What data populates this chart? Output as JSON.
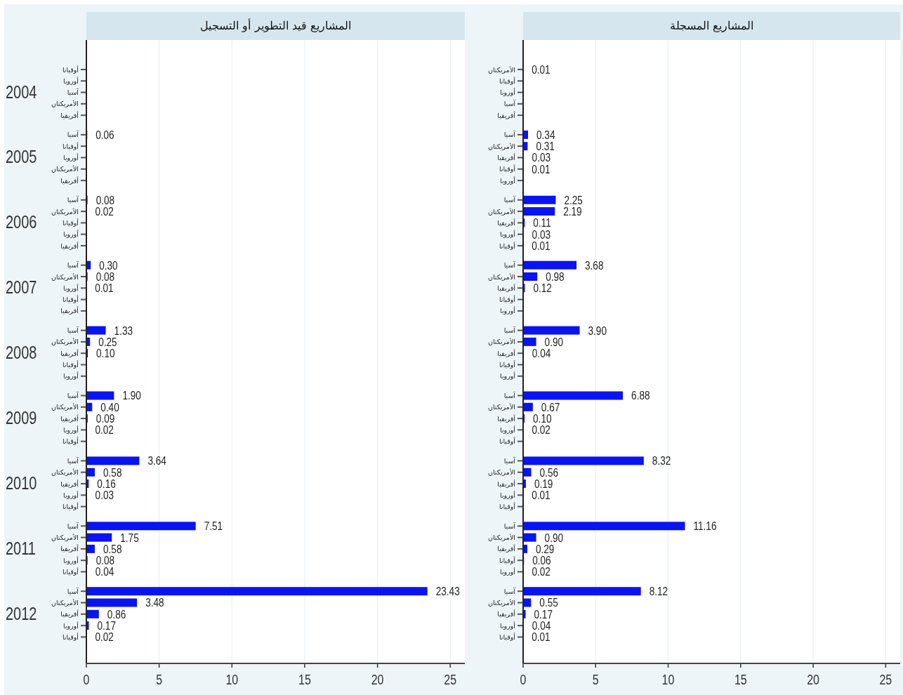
{
  "chart_data": [
    {
      "type": "bar",
      "orientation": "horizontal",
      "title": "المشاريع قيد التطوير أو التسجيل",
      "color": "#0a14f0",
      "grid": "x",
      "xlim": [
        0,
        26
      ],
      "xticks": [
        0,
        5,
        10,
        15,
        20,
        25
      ],
      "annotations": [
        "2004",
        "2005",
        "2006",
        "2007",
        "2008",
        "2009",
        "2010",
        "2011",
        "2012"
      ],
      "categories": [
        "أوقيانا",
        "أوروبا",
        "آسيا",
        "الأمريكتان",
        "أفريقيا",
        "آسيا",
        "أوقيانا",
        "أوروبا",
        "الأمريكتان",
        "أفريقيا",
        "آسيا",
        "الأمريكتان",
        "أوقيانا",
        "أوروبا",
        "أفريقيا",
        "آسيا",
        "الأمريكتان",
        "أوروبا",
        "أوقيانا",
        "أفريقيا",
        "آسيا",
        "الأمريكتان",
        "أفريقيا",
        "أوقيانا",
        "أوروبا",
        "آسيا",
        "الأمريكتان",
        "أفريقيا",
        "أوروبا",
        "أوقيانا",
        "آسيا",
        "الأمريكتان",
        "أفريقيا",
        "أوروبا",
        "أوقيانا",
        "آسيا",
        "الأمريكتان",
        "أفريقيا",
        "أوروبا",
        "أوقيانا",
        "آسيا",
        "الأمريكتان",
        "أفريقيا",
        "أوروبا",
        "أوقيانا"
      ],
      "values": [
        null,
        null,
        null,
        null,
        null,
        0.06,
        null,
        null,
        null,
        null,
        0.08,
        0.02,
        null,
        null,
        null,
        0.3,
        0.08,
        0.01,
        null,
        null,
        1.33,
        0.25,
        0.1,
        null,
        null,
        1.9,
        0.4,
        0.09,
        0.02,
        null,
        3.64,
        0.58,
        0.16,
        0.03,
        null,
        7.51,
        1.75,
        0.58,
        0.08,
        0.04,
        23.43,
        3.48,
        0.86,
        0.17,
        0.02
      ],
      "value_labels": [
        null,
        null,
        null,
        null,
        null,
        "0.06",
        null,
        null,
        null,
        null,
        "0.08",
        "0.02",
        null,
        null,
        null,
        "0.30",
        "0.08",
        "0.01",
        null,
        null,
        "1.33",
        "0.25",
        "0.10",
        null,
        null,
        "1.90",
        "0.40",
        "0.09",
        "0.02",
        null,
        "3.64",
        "0.58",
        "0.16",
        "0.03",
        null,
        "7.51",
        "1.75",
        "0.58",
        "0.08",
        "0.04",
        "23.43",
        "3.48",
        "0.86",
        "0.17",
        "0.02"
      ]
    },
    {
      "type": "bar",
      "orientation": "horizontal",
      "title": "المشاريع المسجلة",
      "color": "#0a14f0",
      "grid": "x",
      "xlim": [
        0,
        26
      ],
      "xticks": [
        0,
        5,
        10,
        15,
        20,
        25
      ],
      "categories": [
        "الأمريكتان",
        "أوقيانا",
        "أوروبا",
        "آسيا",
        "أفريقيا",
        "آسيا",
        "الأمريكتان",
        "أفريقيا",
        "أوقيانا",
        "أوروبا",
        "آسيا",
        "الأمريكتان",
        "أفريقيا",
        "أوروبا",
        "أوقيانا",
        "آسيا",
        "الأمريكتان",
        "أفريقيا",
        "أوقيانا",
        "أوروبا",
        "آسيا",
        "الأمريكتان",
        "أفريقيا",
        "أوقيانا",
        "أوروبا",
        "آسيا",
        "الأمريكتان",
        "أفريقيا",
        "أوروبا",
        "أوقيانا",
        "آسيا",
        "الأمريكتان",
        "أفريقيا",
        "أوروبا",
        "أوقيانا",
        "آسيا",
        "الأمريكتان",
        "أفريقيا",
        "أوقيانا",
        "أوروبا",
        "آسيا",
        "الأمريكتان",
        "أفريقيا",
        "أوروبا",
        "أوقيانا"
      ],
      "values": [
        0.01,
        null,
        null,
        null,
        null,
        0.34,
        0.31,
        0.03,
        0.01,
        null,
        2.25,
        2.19,
        0.11,
        0.03,
        0.01,
        3.68,
        0.98,
        0.12,
        null,
        null,
        3.9,
        0.9,
        0.04,
        null,
        null,
        6.88,
        0.67,
        0.1,
        0.02,
        null,
        8.32,
        0.56,
        0.19,
        0.01,
        null,
        11.16,
        0.9,
        0.29,
        0.06,
        0.02,
        8.12,
        0.55,
        0.17,
        0.04,
        0.01
      ],
      "value_labels": [
        "0.01",
        null,
        null,
        null,
        null,
        "0.34",
        "0.31",
        "0.03",
        "0.01",
        null,
        "2.25",
        "2.19",
        "0.11",
        "0.03",
        "0.01",
        "3.68",
        "0.98",
        "0.12",
        null,
        null,
        "3.90",
        "0.90",
        "0.04",
        null,
        null,
        "6.88",
        "0.67",
        "0.10",
        "0.02",
        null,
        "8.32",
        "0.56",
        "0.19",
        "0.01",
        null,
        "11.16",
        "0.90",
        "0.29",
        "0.06",
        "0.02",
        "8.12",
        "0.55",
        "0.17",
        "0.04",
        "0.01"
      ]
    }
  ]
}
